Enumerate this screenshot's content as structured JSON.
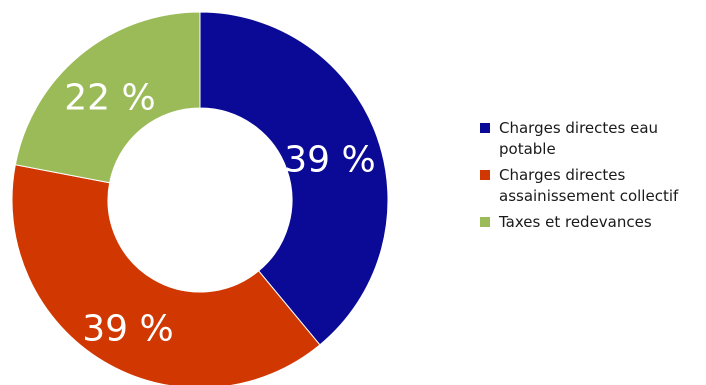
{
  "chart_data": {
    "type": "pie",
    "title": "",
    "donut": true,
    "start": "12 o'clock",
    "direction": "clockwise",
    "slices": [
      {
        "name": "Charges directes eau potable",
        "value": 39,
        "label": "39 %",
        "color": "#0a0a96"
      },
      {
        "name": "Charges directes assainissement collectif",
        "value": 39,
        "label": "39 %",
        "color": "#d13700"
      },
      {
        "name": "Taxes et redevances",
        "value": 22,
        "label": "22 %",
        "color": "#9bbb59"
      }
    ],
    "legend_position": "right"
  }
}
